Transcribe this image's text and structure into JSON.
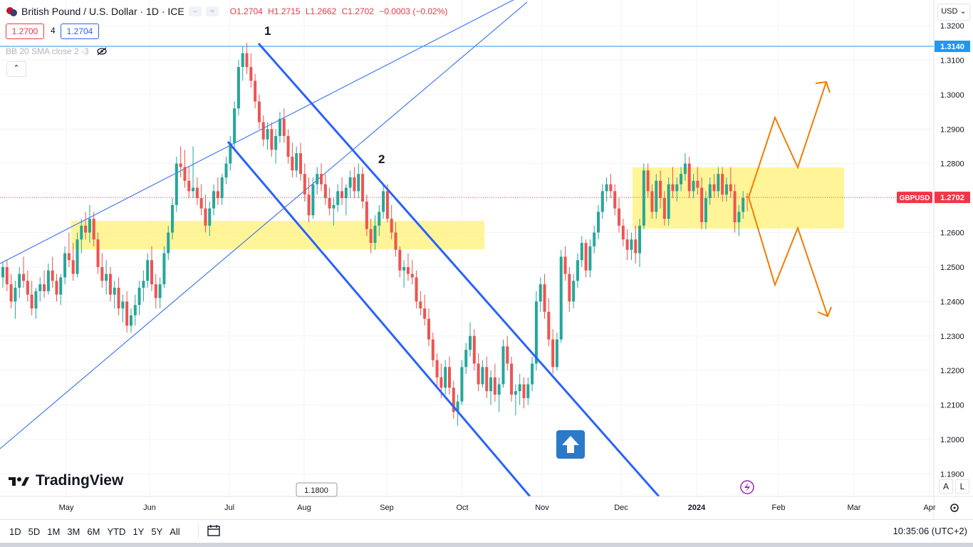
{
  "header": {
    "symbol_title": "British Pound / U.S. Dollar · 1D · ICE",
    "open": "O1.2704",
    "high": "H1.2715",
    "low": "L1.2662",
    "close": "C1.2702",
    "change": "−0.0003 (−0.02%)",
    "bid": "1.2700",
    "spread": "4",
    "ask": "1.2704",
    "indicator": "BB 20 SMA close 2 -3",
    "currency": "USD"
  },
  "brand": "TradingView",
  "bottom_bar": {
    "ranges": [
      "1D",
      "5D",
      "1M",
      "3M",
      "6M",
      "YTD",
      "1Y",
      "5Y",
      "All"
    ],
    "clock": "10:35:06 (UTC+2)",
    "scale_auto": "A",
    "scale_log": "L"
  },
  "colors": {
    "up": "#26a69a",
    "down": "#ef5350",
    "trend": "#2962ff",
    "zone": "#fff176",
    "arrows": "#f57c00",
    "label_blue": "#2962ff",
    "label_red": "#f23645"
  },
  "chart_data": {
    "type": "candlestick",
    "symbol": "GBPUSD",
    "x_ticks": [
      "May",
      "Jun",
      "Jul",
      "Aug",
      "Sep",
      "Oct",
      "Nov",
      "Dec",
      "2024",
      "Feb",
      "Mar",
      "Apr"
    ],
    "y_ticks": [
      "1.3200",
      "1.3100",
      "1.3000",
      "1.2900",
      "1.2800",
      "1.2700",
      "1.2600",
      "1.2500",
      "1.2400",
      "1.2300",
      "1.2200",
      "1.2100",
      "1.2000",
      "1.1900"
    ],
    "y_range": [
      1.18,
      1.3225
    ],
    "last_price": "1.2702",
    "last_label": "GBPUSD",
    "hline_price": "1.3140",
    "bottom_axis_label": "1.1800",
    "annotations": [
      "1",
      "2"
    ],
    "candles": [
      [
        1.247,
        1.2515,
        1.244,
        1.25
      ],
      [
        1.25,
        1.252,
        1.243,
        1.245
      ],
      [
        1.245,
        1.248,
        1.238,
        1.24
      ],
      [
        1.24,
        1.246,
        1.235,
        1.244
      ],
      [
        1.244,
        1.25,
        1.241,
        1.248
      ],
      [
        1.248,
        1.253,
        1.244,
        1.246
      ],
      [
        1.246,
        1.249,
        1.24,
        1.242
      ],
      [
        1.242,
        1.246,
        1.236,
        1.238
      ],
      [
        1.238,
        1.244,
        1.235,
        1.243
      ],
      [
        1.243,
        1.247,
        1.24,
        1.245
      ],
      [
        1.245,
        1.249,
        1.241,
        1.243
      ],
      [
        1.243,
        1.251,
        1.242,
        1.249
      ],
      [
        1.249,
        1.253,
        1.244,
        1.246
      ],
      [
        1.246,
        1.248,
        1.24,
        1.242
      ],
      [
        1.242,
        1.248,
        1.239,
        1.247
      ],
      [
        1.247,
        1.256,
        1.245,
        1.254
      ],
      [
        1.254,
        1.26,
        1.25,
        1.252
      ],
      [
        1.252,
        1.257,
        1.246,
        1.248
      ],
      [
        1.248,
        1.26,
        1.247,
        1.258
      ],
      [
        1.258,
        1.264,
        1.254,
        1.262
      ],
      [
        1.262,
        1.266,
        1.258,
        1.26
      ],
      [
        1.26,
        1.268,
        1.257,
        1.264
      ],
      [
        1.264,
        1.266,
        1.256,
        1.258
      ],
      [
        1.258,
        1.26,
        1.248,
        1.25
      ],
      [
        1.25,
        1.254,
        1.244,
        1.246
      ],
      [
        1.246,
        1.252,
        1.242,
        1.248
      ],
      [
        1.248,
        1.25,
        1.24,
        1.242
      ],
      [
        1.242,
        1.246,
        1.238,
        1.244
      ],
      [
        1.244,
        1.247,
        1.236,
        1.238
      ],
      [
        1.238,
        1.242,
        1.234,
        1.24
      ],
      [
        1.24,
        1.243,
        1.231,
        1.233
      ],
      [
        1.233,
        1.238,
        1.231,
        1.236
      ],
      [
        1.236,
        1.242,
        1.233,
        1.239
      ],
      [
        1.239,
        1.246,
        1.236,
        1.244
      ],
      [
        1.244,
        1.249,
        1.24,
        1.246
      ],
      [
        1.246,
        1.254,
        1.244,
        1.252
      ],
      [
        1.252,
        1.256,
        1.243,
        1.245
      ],
      [
        1.245,
        1.248,
        1.238,
        1.241
      ],
      [
        1.241,
        1.247,
        1.238,
        1.245
      ],
      [
        1.245,
        1.256,
        1.244,
        1.254
      ],
      [
        1.254,
        1.262,
        1.252,
        1.26
      ],
      [
        1.26,
        1.27,
        1.258,
        1.268
      ],
      [
        1.268,
        1.282,
        1.266,
        1.28
      ],
      [
        1.28,
        1.285,
        1.276,
        1.279
      ],
      [
        1.279,
        1.284,
        1.273,
        1.275
      ],
      [
        1.275,
        1.279,
        1.27,
        1.272
      ],
      [
        1.272,
        1.285,
        1.27,
        1.273
      ],
      [
        1.273,
        1.276,
        1.268,
        1.27
      ],
      [
        1.27,
        1.274,
        1.265,
        1.267
      ],
      [
        1.267,
        1.271,
        1.26,
        1.262
      ],
      [
        1.262,
        1.269,
        1.259,
        1.267
      ],
      [
        1.267,
        1.274,
        1.265,
        1.272
      ],
      [
        1.272,
        1.276,
        1.268,
        1.27
      ],
      [
        1.27,
        1.277,
        1.268,
        1.276
      ],
      [
        1.276,
        1.282,
        1.274,
        1.28
      ],
      [
        1.28,
        1.288,
        1.278,
        1.286
      ],
      [
        1.286,
        1.298,
        1.284,
        1.296
      ],
      [
        1.296,
        1.31,
        1.294,
        1.308
      ],
      [
        1.308,
        1.314,
        1.304,
        1.312
      ],
      [
        1.312,
        1.315,
        1.306,
        1.308
      ],
      [
        1.308,
        1.312,
        1.302,
        1.304
      ],
      [
        1.304,
        1.306,
        1.296,
        1.298
      ],
      [
        1.298,
        1.3,
        1.29,
        1.292
      ],
      [
        1.292,
        1.294,
        1.285,
        1.287
      ],
      [
        1.287,
        1.292,
        1.284,
        1.29
      ],
      [
        1.29,
        1.292,
        1.282,
        1.284
      ],
      [
        1.284,
        1.29,
        1.28,
        1.288
      ],
      [
        1.288,
        1.295,
        1.286,
        1.293
      ],
      [
        1.293,
        1.296,
        1.286,
        1.288
      ],
      [
        1.288,
        1.29,
        1.28,
        1.282
      ],
      [
        1.282,
        1.286,
        1.276,
        1.278
      ],
      [
        1.278,
        1.285,
        1.276,
        1.283
      ],
      [
        1.283,
        1.286,
        1.275,
        1.277
      ],
      [
        1.277,
        1.28,
        1.269,
        1.271
      ],
      [
        1.271,
        1.276,
        1.263,
        1.265
      ],
      [
        1.265,
        1.276,
        1.264,
        1.274
      ],
      [
        1.274,
        1.279,
        1.271,
        1.277
      ],
      [
        1.277,
        1.28,
        1.272,
        1.274
      ],
      [
        1.274,
        1.277,
        1.268,
        1.27
      ],
      [
        1.27,
        1.273,
        1.265,
        1.267
      ],
      [
        1.267,
        1.27,
        1.262,
        1.268
      ],
      [
        1.268,
        1.274,
        1.266,
        1.272
      ],
      [
        1.272,
        1.276,
        1.268,
        1.27
      ],
      [
        1.27,
        1.274,
        1.265,
        1.273
      ],
      [
        1.273,
        1.278,
        1.27,
        1.276
      ],
      [
        1.276,
        1.279,
        1.27,
        1.272
      ],
      [
        1.272,
        1.28,
        1.27,
        1.277
      ],
      [
        1.277,
        1.279,
        1.267,
        1.269
      ],
      [
        1.269,
        1.271,
        1.259,
        1.261
      ],
      [
        1.261,
        1.264,
        1.254,
        1.257
      ],
      [
        1.257,
        1.265,
        1.255,
        1.262
      ],
      [
        1.262,
        1.268,
        1.259,
        1.266
      ],
      [
        1.266,
        1.274,
        1.264,
        1.272
      ],
      [
        1.272,
        1.274,
        1.263,
        1.264
      ],
      [
        1.264,
        1.268,
        1.258,
        1.26
      ],
      [
        1.26,
        1.263,
        1.253,
        1.255
      ],
      [
        1.255,
        1.256,
        1.247,
        1.249
      ],
      [
        1.249,
        1.252,
        1.244,
        1.25
      ],
      [
        1.25,
        1.254,
        1.246,
        1.248
      ],
      [
        1.248,
        1.252,
        1.245,
        1.247
      ],
      [
        1.247,
        1.249,
        1.238,
        1.24
      ],
      [
        1.24,
        1.243,
        1.236,
        1.238
      ],
      [
        1.238,
        1.242,
        1.233,
        1.235
      ],
      [
        1.235,
        1.238,
        1.227,
        1.229
      ],
      [
        1.229,
        1.231,
        1.221,
        1.223
      ],
      [
        1.223,
        1.225,
        1.215,
        1.218
      ],
      [
        1.218,
        1.222,
        1.212,
        1.215
      ],
      [
        1.215,
        1.223,
        1.213,
        1.221
      ],
      [
        1.221,
        1.224,
        1.213,
        1.215
      ],
      [
        1.215,
        1.217,
        1.206,
        1.208
      ],
      [
        1.208,
        1.213,
        1.204,
        1.211
      ],
      [
        1.211,
        1.223,
        1.21,
        1.221
      ],
      [
        1.221,
        1.228,
        1.219,
        1.226
      ],
      [
        1.226,
        1.234,
        1.224,
        1.23
      ],
      [
        1.23,
        1.232,
        1.22,
        1.222
      ],
      [
        1.222,
        1.225,
        1.214,
        1.216
      ],
      [
        1.216,
        1.223,
        1.215,
        1.221
      ],
      [
        1.221,
        1.224,
        1.212,
        1.214
      ],
      [
        1.214,
        1.22,
        1.21,
        1.218
      ],
      [
        1.218,
        1.222,
        1.211,
        1.213
      ],
      [
        1.213,
        1.218,
        1.208,
        1.216
      ],
      [
        1.216,
        1.229,
        1.215,
        1.227
      ],
      [
        1.227,
        1.23,
        1.22,
        1.222
      ],
      [
        1.222,
        1.224,
        1.211,
        1.213
      ],
      [
        1.213,
        1.216,
        1.207,
        1.214
      ],
      [
        1.214,
        1.219,
        1.21,
        1.216
      ],
      [
        1.216,
        1.218,
        1.209,
        1.212
      ],
      [
        1.212,
        1.218,
        1.21,
        1.216
      ],
      [
        1.216,
        1.224,
        1.214,
        1.222
      ],
      [
        1.222,
        1.243,
        1.22,
        1.24
      ],
      [
        1.24,
        1.247,
        1.237,
        1.245
      ],
      [
        1.245,
        1.248,
        1.235,
        1.237
      ],
      [
        1.237,
        1.241,
        1.227,
        1.229
      ],
      [
        1.229,
        1.232,
        1.219,
        1.221
      ],
      [
        1.221,
        1.231,
        1.22,
        1.229
      ],
      [
        1.229,
        1.255,
        1.228,
        1.253
      ],
      [
        1.253,
        1.256,
        1.246,
        1.248
      ],
      [
        1.248,
        1.25,
        1.237,
        1.24
      ],
      [
        1.24,
        1.248,
        1.238,
        1.246
      ],
      [
        1.246,
        1.254,
        1.244,
        1.252
      ],
      [
        1.252,
        1.259,
        1.25,
        1.257
      ],
      [
        1.257,
        1.258,
        1.247,
        1.249
      ],
      [
        1.249,
        1.258,
        1.247,
        1.256
      ],
      [
        1.256,
        1.262,
        1.254,
        1.26
      ],
      [
        1.26,
        1.268,
        1.258,
        1.266
      ],
      [
        1.266,
        1.274,
        1.264,
        1.272
      ],
      [
        1.272,
        1.276,
        1.269,
        1.274
      ],
      [
        1.274,
        1.277,
        1.27,
        1.272
      ],
      [
        1.272,
        1.274,
        1.265,
        1.267
      ],
      [
        1.267,
        1.27,
        1.26,
        1.262
      ],
      [
        1.262,
        1.264,
        1.256,
        1.258
      ],
      [
        1.258,
        1.261,
        1.252,
        1.255
      ],
      [
        1.255,
        1.26,
        1.252,
        1.258
      ],
      [
        1.258,
        1.262,
        1.251,
        1.254
      ],
      [
        1.254,
        1.264,
        1.25,
        1.262
      ],
      [
        1.262,
        1.28,
        1.261,
        1.278
      ],
      [
        1.278,
        1.28,
        1.27,
        1.272
      ],
      [
        1.272,
        1.274,
        1.264,
        1.266
      ],
      [
        1.266,
        1.277,
        1.264,
        1.275
      ],
      [
        1.275,
        1.278,
        1.267,
        1.27
      ],
      [
        1.27,
        1.272,
        1.262,
        1.264
      ],
      [
        1.264,
        1.276,
        1.262,
        1.274
      ],
      [
        1.274,
        1.279,
        1.27,
        1.272
      ],
      [
        1.272,
        1.276,
        1.269,
        1.274
      ],
      [
        1.274,
        1.279,
        1.272,
        1.277
      ],
      [
        1.277,
        1.283,
        1.275,
        1.28
      ],
      [
        1.28,
        1.282,
        1.27,
        1.272
      ],
      [
        1.272,
        1.277,
        1.27,
        1.275
      ],
      [
        1.275,
        1.279,
        1.271,
        1.273
      ],
      [
        1.273,
        1.276,
        1.261,
        1.263
      ],
      [
        1.263,
        1.272,
        1.261,
        1.27
      ],
      [
        1.27,
        1.276,
        1.268,
        1.274
      ],
      [
        1.274,
        1.277,
        1.27,
        1.272
      ],
      [
        1.272,
        1.279,
        1.27,
        1.277
      ],
      [
        1.277,
        1.279,
        1.269,
        1.271
      ],
      [
        1.271,
        1.276,
        1.269,
        1.274
      ],
      [
        1.274,
        1.279,
        1.27,
        1.272
      ],
      [
        1.272,
        1.274,
        1.26,
        1.263
      ],
      [
        1.263,
        1.268,
        1.259,
        1.266
      ],
      [
        1.266,
        1.272,
        1.264,
        1.27
      ],
      [
        1.2704,
        1.2715,
        1.2662,
        1.2702
      ]
    ]
  }
}
